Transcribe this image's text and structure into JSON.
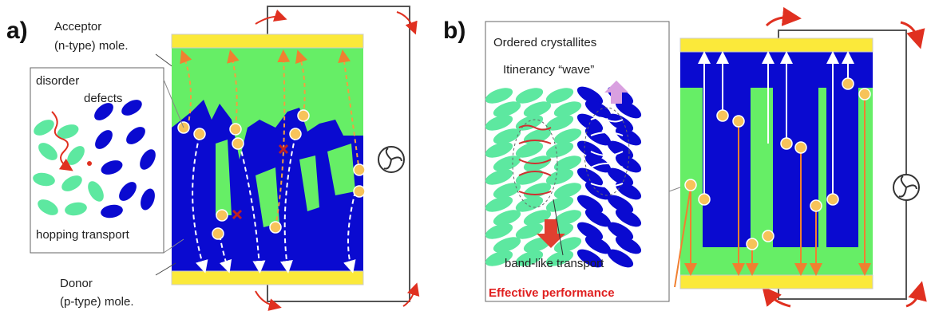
{
  "panel_a": {
    "label": "a)",
    "acceptor_label": [
      "Acceptor",
      "(n-type) mole."
    ],
    "inset": {
      "lines": [
        "disorder",
        "defects"
      ],
      "caption": "hopping transport"
    },
    "donor_label": [
      "Donor",
      "(p-type) mole."
    ]
  },
  "panel_b": {
    "label": "b)",
    "inset": {
      "title": "Ordered crystallites",
      "subtitle": "Itinerancy “wave”",
      "caption": "band-like transport"
    },
    "highlight": "Effective performance"
  }
}
